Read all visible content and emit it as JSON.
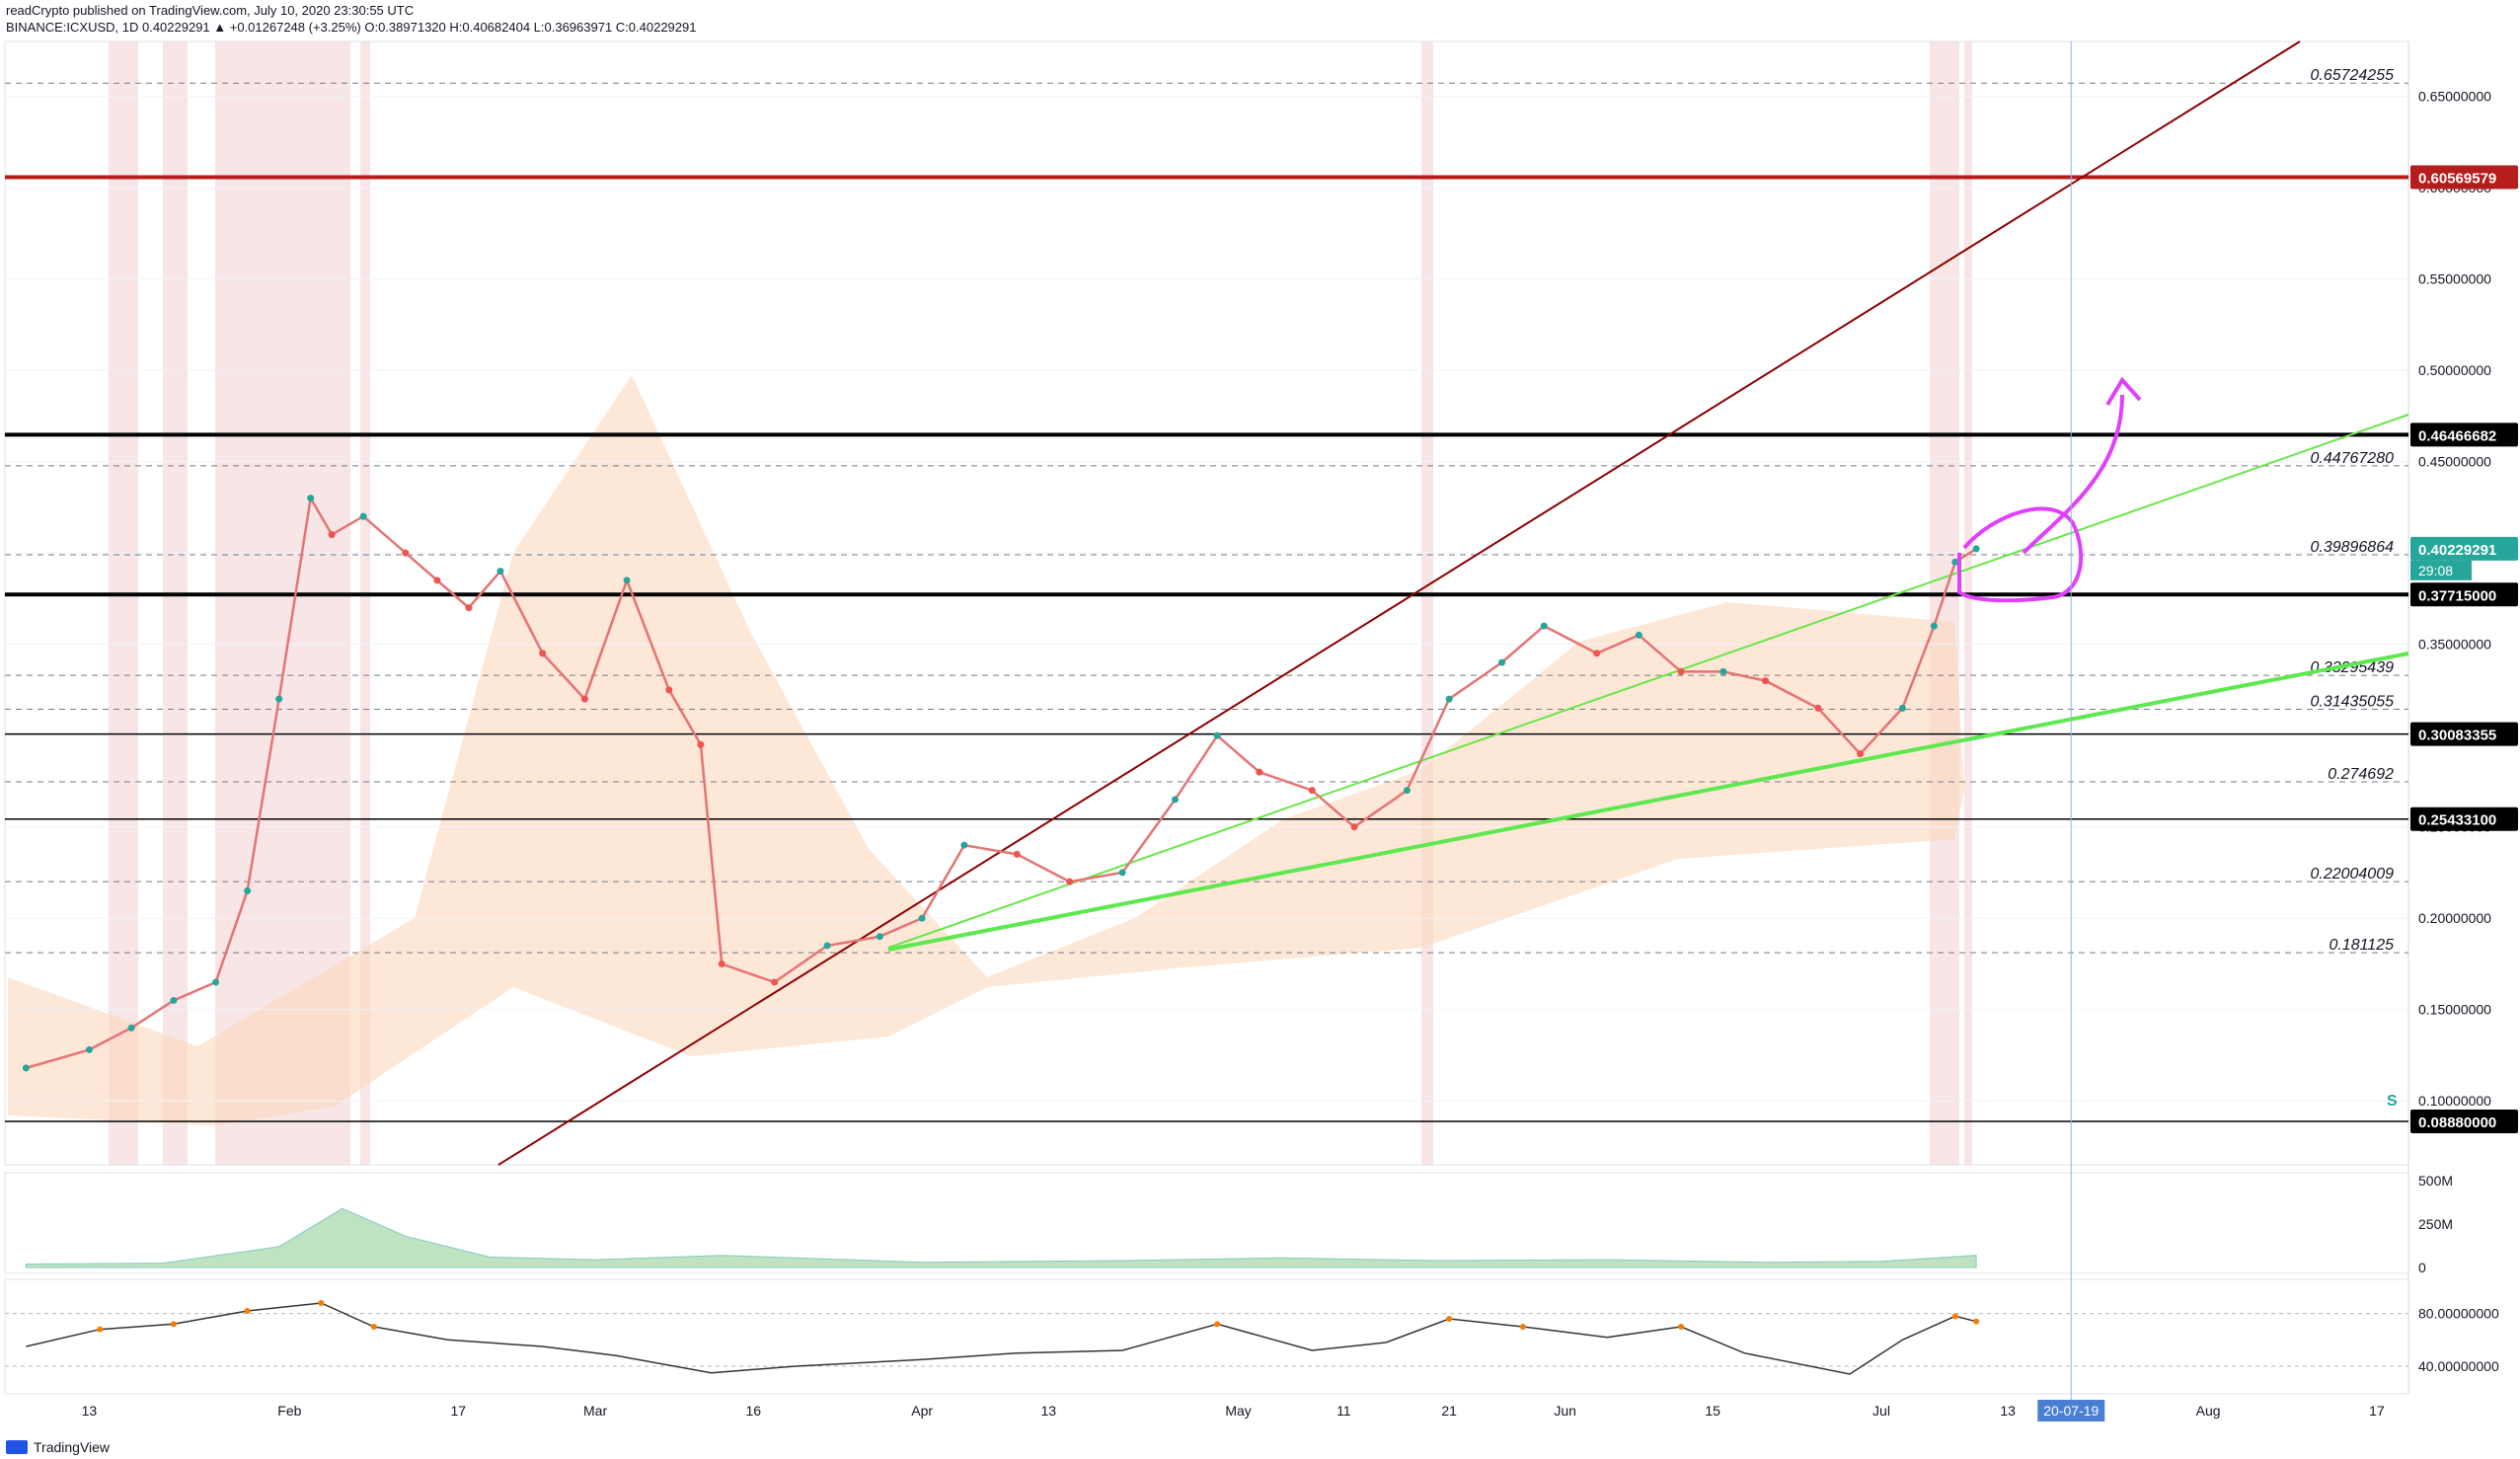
{
  "header": {
    "line1": "readCrypto published on TradingView.com, July 10, 2020 23:30:55 UTC",
    "line2": "BINANCE:ICXUSD, 1D 0.40229291 ▲ +0.01267248 (+3.25%) O:0.38971320 H:0.40682404 L:0.36963971 C:0.40229291"
  },
  "footer": {
    "brand": "TradingView"
  },
  "colors": {
    "up": "#26a69a",
    "down": "#ef5350",
    "resistance": "#b71c1c",
    "trend_green": "#5ee84f",
    "cloud": "#fbd7bd",
    "annot": "#e040fb"
  },
  "chart_data": {
    "type": "line",
    "symbol": "BINANCE:ICXUSD",
    "interval": "1D",
    "last_price": "0.40229291",
    "countdown": "29:08",
    "crosshair_date": "20-07-19",
    "ylim": [
      0.065,
      0.68
    ],
    "x_ticks": [
      "13",
      "Feb",
      "17",
      "Mar",
      "16",
      "Apr",
      "13",
      "May",
      "11",
      "21",
      "Jun",
      "15",
      "Jul",
      "13",
      "Aug",
      "17"
    ],
    "y_ticks": [
      "0.65000000",
      "0.60000000",
      "0.55000000",
      "0.50000000",
      "0.45000000",
      "0.40000000",
      "0.35000000",
      "0.30000000",
      "0.25000000",
      "0.20000000",
      "0.15000000",
      "0.10000000"
    ],
    "price_tags": [
      {
        "label": "0.60569579",
        "value": 0.6057,
        "color": "#b71c1c"
      },
      {
        "label": "0.46466682",
        "value": 0.4647,
        "color": "#000000"
      },
      {
        "label": "0.40229291",
        "value": 0.4023,
        "color": "#26a69a"
      },
      {
        "label": "0.37715000",
        "value": 0.3772,
        "color": "#000000"
      },
      {
        "label": "0.30083355",
        "value": 0.3008,
        "color": "#000000"
      },
      {
        "label": "0.25433100",
        "value": 0.2543,
        "color": "#000000"
      },
      {
        "label": "0.08880000",
        "value": 0.0888,
        "color": "#000000"
      }
    ],
    "fib_labels": [
      {
        "label": "0.65724255",
        "value": 0.6572
      },
      {
        "label": "0.44767280",
        "value": 0.4477
      },
      {
        "label": "0.39896864",
        "value": 0.399
      },
      {
        "label": "0.33295439",
        "value": 0.333
      },
      {
        "label": "0.31435055",
        "value": 0.3144
      },
      {
        "label": "0.274692",
        "value": 0.2747
      },
      {
        "label": "0.22004009",
        "value": 0.22
      },
      {
        "label": "0.181125",
        "value": 0.1811
      }
    ],
    "close_series": {
      "dates": [
        "2020-01-07",
        "2020-01-13",
        "2020-01-17",
        "2020-01-21",
        "2020-01-25",
        "2020-01-28",
        "2020-01-31",
        "2020-02-03",
        "2020-02-05",
        "2020-02-08",
        "2020-02-12",
        "2020-02-15",
        "2020-02-18",
        "2020-02-21",
        "2020-02-25",
        "2020-02-29",
        "2020-03-04",
        "2020-03-08",
        "2020-03-11",
        "2020-03-13",
        "2020-03-18",
        "2020-03-23",
        "2020-03-28",
        "2020-04-01",
        "2020-04-05",
        "2020-04-10",
        "2020-04-15",
        "2020-04-20",
        "2020-04-25",
        "2020-04-29",
        "2020-05-03",
        "2020-05-08",
        "2020-05-12",
        "2020-05-17",
        "2020-05-21",
        "2020-05-26",
        "2020-05-30",
        "2020-06-04",
        "2020-06-08",
        "2020-06-12",
        "2020-06-16",
        "2020-06-20",
        "2020-06-25",
        "2020-06-29",
        "2020-07-03",
        "2020-07-06",
        "2020-07-08",
        "2020-07-10"
      ],
      "values": [
        0.118,
        0.128,
        0.14,
        0.155,
        0.165,
        0.215,
        0.32,
        0.43,
        0.41,
        0.42,
        0.4,
        0.385,
        0.37,
        0.39,
        0.345,
        0.32,
        0.385,
        0.325,
        0.295,
        0.175,
        0.165,
        0.185,
        0.19,
        0.2,
        0.24,
        0.235,
        0.22,
        0.225,
        0.265,
        0.3,
        0.28,
        0.27,
        0.25,
        0.27,
        0.32,
        0.34,
        0.36,
        0.345,
        0.355,
        0.335,
        0.335,
        0.33,
        0.315,
        0.29,
        0.315,
        0.36,
        0.395,
        0.4023
      ]
    },
    "volume": {
      "axis_labels": [
        "500M",
        "250M",
        "0"
      ],
      "dates": [
        "2020-01-07",
        "2020-01-20",
        "2020-01-31",
        "2020-02-06",
        "2020-02-12",
        "2020-02-20",
        "2020-03-01",
        "2020-03-13",
        "2020-04-01",
        "2020-04-20",
        "2020-05-05",
        "2020-05-20",
        "2020-06-05",
        "2020-06-20",
        "2020-07-01",
        "2020-07-10"
      ],
      "values": [
        20,
        25,
        120,
        340,
        180,
        60,
        45,
        70,
        30,
        40,
        55,
        40,
        45,
        30,
        35,
        70
      ]
    },
    "rsi": {
      "axis_labels": [
        "80.00000000",
        "40.00000000"
      ],
      "dates": [
        "2020-01-07",
        "2020-01-14",
        "2020-01-21",
        "2020-01-28",
        "2020-02-04",
        "2020-02-09",
        "2020-02-16",
        "2020-02-25",
        "2020-03-03",
        "2020-03-12",
        "2020-03-20",
        "2020-04-01",
        "2020-04-10",
        "2020-04-20",
        "2020-04-29",
        "2020-05-08",
        "2020-05-15",
        "2020-05-21",
        "2020-05-28",
        "2020-06-05",
        "2020-06-12",
        "2020-06-18",
        "2020-06-28",
        "2020-07-03",
        "2020-07-08",
        "2020-07-10"
      ],
      "values": [
        55,
        68,
        72,
        82,
        88,
        70,
        60,
        55,
        48,
        35,
        40,
        45,
        50,
        52,
        72,
        52,
        58,
        76,
        70,
        62,
        70,
        50,
        34,
        60,
        78,
        74
      ]
    }
  },
  "annotations": {
    "scale_marker": "S"
  }
}
